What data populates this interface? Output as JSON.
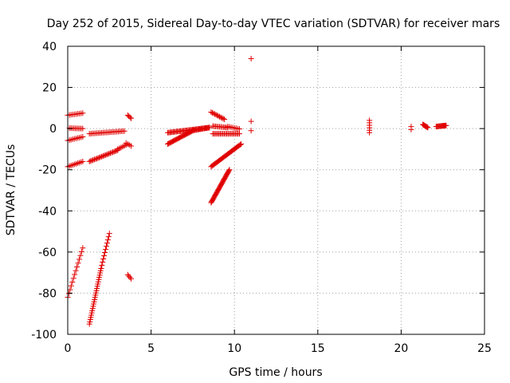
{
  "chart_data": {
    "type": "scatter",
    "title": "Day 252 of 2015, Sidereal Day-to-day VTEC variation (SDTVAR) for receiver mars",
    "xlabel": "GPS time / hours",
    "ylabel": "SDTVAR / TECUs",
    "xlim": [
      0,
      25
    ],
    "ylim": [
      -100,
      40
    ],
    "xticks": [
      0,
      5,
      10,
      15,
      20,
      25
    ],
    "yticks": [
      -100,
      -80,
      -60,
      -40,
      -20,
      0,
      20,
      40
    ],
    "grid": true,
    "marker": "+",
    "color": "#e00000",
    "segments": [
      {
        "x": [
          0.0,
          0.9
        ],
        "y": [
          6.5,
          7.5
        ],
        "n": 10
      },
      {
        "x": [
          0.1,
          0.9
        ],
        "y": [
          0.2,
          0.0
        ],
        "n": 10
      },
      {
        "x": [
          0.0,
          0.9
        ],
        "y": [
          -5.8,
          -4.0
        ],
        "n": 10
      },
      {
        "x": [
          0.0,
          0.9
        ],
        "y": [
          -18.5,
          -16.0
        ],
        "n": 10
      },
      {
        "x": [
          0.0,
          0.9
        ],
        "y": [
          -82.0,
          -58.0
        ],
        "n": 14
      },
      {
        "x": [
          1.3,
          3.4
        ],
        "y": [
          -2.5,
          -1.2
        ],
        "n": 24
      },
      {
        "x": [
          1.3,
          3.0
        ],
        "y": [
          -16.0,
          -10.5
        ],
        "n": 24
      },
      {
        "x": [
          3.0,
          3.5
        ],
        "y": [
          -10.0,
          -8.0
        ],
        "n": 6
      },
      {
        "x": [
          1.3,
          2.0
        ],
        "y": [
          -95.0,
          -68.0
        ],
        "n": 26
      },
      {
        "x": [
          2.0,
          2.5
        ],
        "y": [
          -68.0,
          -51.0
        ],
        "n": 12
      },
      {
        "x": [
          3.6,
          3.8
        ],
        "y": [
          6.5,
          5.0
        ],
        "n": 4
      },
      {
        "x": [
          3.5,
          3.8
        ],
        "y": [
          -7.0,
          -8.5
        ],
        "n": 4
      },
      {
        "x": [
          3.6,
          3.8
        ],
        "y": [
          -71.0,
          -73.0
        ],
        "n": 4
      },
      {
        "x": [
          6.0,
          8.5
        ],
        "y": [
          -2.0,
          0.5
        ],
        "n": 40
      },
      {
        "x": [
          6.0,
          7.5
        ],
        "y": [
          -7.5,
          -1.0
        ],
        "n": 28
      },
      {
        "x": [
          7.5,
          8.5
        ],
        "y": [
          -1.0,
          0.5
        ],
        "n": 14
      },
      {
        "x": [
          8.6,
          9.4
        ],
        "y": [
          8.0,
          4.5
        ],
        "n": 12
      },
      {
        "x": [
          8.7,
          9.6
        ],
        "y": [
          1.2,
          0.5
        ],
        "n": 12
      },
      {
        "x": [
          8.7,
          10.3
        ],
        "y": [
          -2.5,
          -2.5
        ],
        "n": 22
      },
      {
        "x": [
          9.6,
          10.3
        ],
        "y": [
          1.0,
          -0.2
        ],
        "n": 8
      },
      {
        "x": [
          8.6,
          10.4
        ],
        "y": [
          -18.5,
          -7.5
        ],
        "n": 32
      },
      {
        "x": [
          8.6,
          9.7
        ],
        "y": [
          -36.0,
          -20.0
        ],
        "n": 36
      },
      {
        "x": [
          11.0,
          11.0
        ],
        "y": [
          34.0,
          34.0
        ],
        "n": 1
      },
      {
        "x": [
          11.0,
          11.0
        ],
        "y": [
          3.5,
          3.5
        ],
        "n": 1
      },
      {
        "x": [
          11.0,
          11.0
        ],
        "y": [
          -1.0,
          -1.0
        ],
        "n": 1
      },
      {
        "x": [
          18.1,
          18.1
        ],
        "y": [
          4.0,
          -2.0
        ],
        "n": 6
      },
      {
        "x": [
          20.6,
          20.6
        ],
        "y": [
          1.0,
          -0.5
        ],
        "n": 2
      },
      {
        "x": [
          21.3,
          21.6
        ],
        "y": [
          2.0,
          0.5
        ],
        "n": 8
      },
      {
        "x": [
          22.1,
          22.7
        ],
        "y": [
          1.0,
          1.5
        ],
        "n": 14
      }
    ]
  }
}
